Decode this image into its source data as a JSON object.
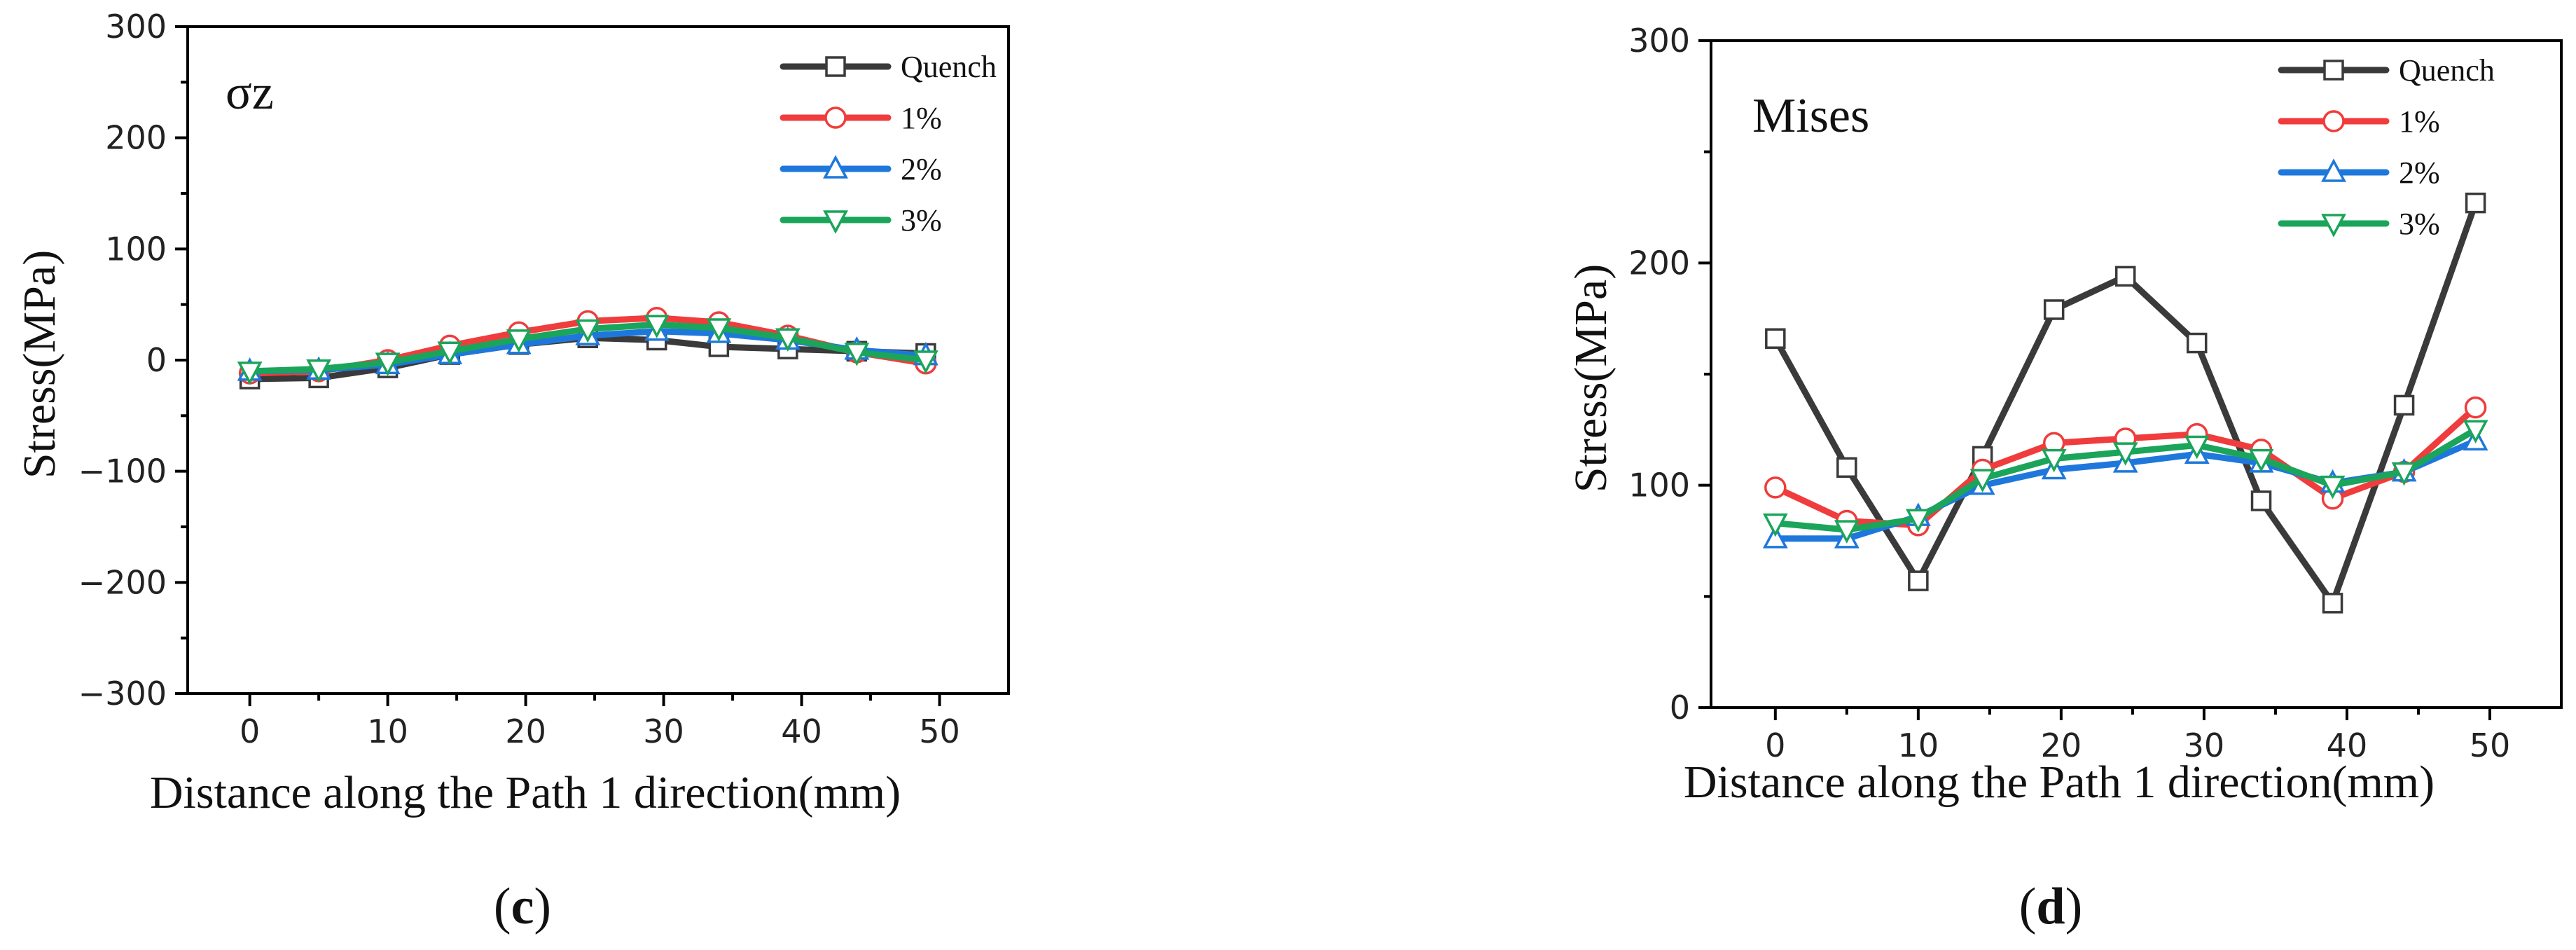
{
  "chart_data": [
    {
      "type": "line",
      "title": "σz",
      "xlabel": "Distance along the Path 1 direction(mm)",
      "ylabel": "Stress(MPa)",
      "xlim": [
        -4.5,
        55
      ],
      "ylim": [
        -300,
        300
      ],
      "xticks": [
        0,
        10,
        20,
        30,
        40,
        50
      ],
      "yticks": [
        -300,
        -200,
        -100,
        0,
        100,
        200,
        300
      ],
      "legend": "top-right",
      "panel_label": "c",
      "x": [
        0,
        5,
        10,
        14.5,
        19.5,
        24.5,
        29.5,
        34,
        39,
        44,
        49
      ],
      "series": [
        {
          "name": "Quench",
          "color": "#3a3a3a",
          "marker": "square",
          "values": [
            -17,
            -16,
            -7,
            5,
            14,
            20,
            18,
            12,
            10,
            8,
            6
          ]
        },
        {
          "name": "1%",
          "color": "#f03c3c",
          "marker": "circle",
          "values": [
            -12,
            -10,
            0,
            13,
            25,
            35,
            38,
            34,
            22,
            7,
            -3
          ]
        },
        {
          "name": "2%",
          "color": "#1e78dc",
          "marker": "triangle-up",
          "values": [
            -10,
            -9,
            -4,
            5,
            14,
            22,
            26,
            24,
            18,
            9,
            4
          ]
        },
        {
          "name": "3%",
          "color": "#1aa55a",
          "marker": "triangle-down",
          "values": [
            -10,
            -8,
            -2,
            8,
            19,
            28,
            32,
            29,
            20,
            7,
            0
          ]
        }
      ]
    },
    {
      "type": "line",
      "title": "Mises",
      "xlabel": "Distance along the Path 1 direction(mm)",
      "ylabel": "Stress(MPa)",
      "xlim": [
        -4.5,
        55
      ],
      "ylim": [
        0,
        300
      ],
      "xticks": [
        0,
        10,
        20,
        30,
        40,
        50
      ],
      "yticks": [
        0,
        100,
        200,
        300
      ],
      "legend": "top-right",
      "panel_label": "d",
      "x": [
        0,
        5,
        10,
        14.5,
        19.5,
        24.5,
        29.5,
        34,
        39,
        44,
        49
      ],
      "series": [
        {
          "name": "Quench",
          "color": "#3a3a3a",
          "marker": "square",
          "values": [
            166,
            108,
            57,
            113,
            179,
            194,
            164,
            93,
            47,
            136,
            227
          ]
        },
        {
          "name": "1%",
          "color": "#f03c3c",
          "marker": "circle",
          "values": [
            99,
            84,
            82,
            107,
            119,
            121,
            123,
            116,
            94,
            106,
            135
          ]
        },
        {
          "name": "2%",
          "color": "#1e78dc",
          "marker": "triangle-up",
          "values": [
            76,
            76,
            86,
            100,
            107,
            110,
            114,
            110,
            101,
            106,
            120
          ]
        },
        {
          "name": "3%",
          "color": "#1aa55a",
          "marker": "triangle-down",
          "values": [
            83,
            80,
            85,
            103,
            112,
            115,
            118,
            112,
            100,
            106,
            125
          ]
        }
      ]
    }
  ]
}
